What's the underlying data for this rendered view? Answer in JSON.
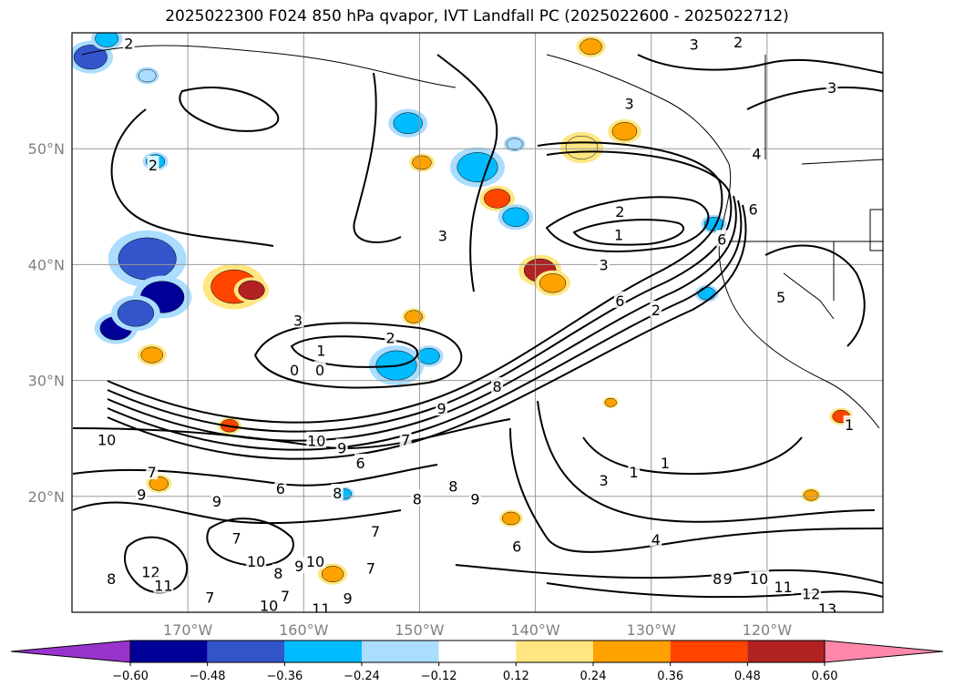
{
  "title": "2025022300 F024 850 hPa qvapor, IVT Landfall PC (2025022600 - 2025022712)",
  "map": {
    "projection": "equirectangular",
    "lon_range": [
      -180,
      -110
    ],
    "lat_range": [
      10,
      60
    ],
    "lat_gridlines": [
      20,
      30,
      40,
      50
    ],
    "lon_gridlines": [
      -170,
      -160,
      -150,
      -140,
      -130,
      -120
    ],
    "lat_labels": [
      "20°N",
      "30°N",
      "40°N",
      "50°N"
    ],
    "lon_labels": [
      "170°W",
      "160°W",
      "150°W",
      "140°W",
      "130°W",
      "120°W"
    ],
    "grid": true
  },
  "colorbar": {
    "levels": [
      -0.72,
      -0.6,
      -0.48,
      -0.36,
      -0.24,
      -0.12,
      0.12,
      0.24,
      0.36,
      0.48,
      0.6,
      0.72
    ],
    "colors": [
      "#9933cc",
      "#000099",
      "#3355cc",
      "#00bbff",
      "#aaddff",
      "#ffffff",
      "#ffe680",
      "#ffa200",
      "#ff4400",
      "#b22222",
      "#ff88aa"
    ],
    "tick_labels": [
      "−0.60",
      "−0.48",
      "−0.36",
      "−0.24",
      "−0.12",
      "0.12",
      "0.24",
      "0.36",
      "0.48",
      "0.60"
    ],
    "extend": "both"
  },
  "contour_labels": [
    {
      "text": "2",
      "lon": -175.1,
      "lat": 59.1
    },
    {
      "text": "2",
      "lon": -173,
      "lat": 48.6
    },
    {
      "text": "3",
      "lon": -160.5,
      "lat": 35.2
    },
    {
      "text": "1",
      "lon": -158.5,
      "lat": 32.6
    },
    {
      "text": "2",
      "lon": -152.5,
      "lat": 33.7
    },
    {
      "text": "0",
      "lon": -160.8,
      "lat": 30.9
    },
    {
      "text": "0",
      "lon": -158.6,
      "lat": 30.9
    },
    {
      "text": "3",
      "lon": -148,
      "lat": 42.5
    },
    {
      "text": "2",
      "lon": -132.7,
      "lat": 44.6
    },
    {
      "text": "1",
      "lon": -132.8,
      "lat": 42.6
    },
    {
      "text": "3",
      "lon": -134.1,
      "lat": 40
    },
    {
      "text": "6",
      "lon": -132.7,
      "lat": 36.9
    },
    {
      "text": "2",
      "lon": -129.6,
      "lat": 36.1
    },
    {
      "text": "3",
      "lon": -131.9,
      "lat": 53.9
    },
    {
      "text": "3",
      "lon": -126.3,
      "lat": 59
    },
    {
      "text": "2",
      "lon": -122.5,
      "lat": 59.2
    },
    {
      "text": "3",
      "lon": -114.4,
      "lat": 55.3
    },
    {
      "text": "4",
      "lon": -120.9,
      "lat": 49.6
    },
    {
      "text": "6",
      "lon": -121.2,
      "lat": 44.8
    },
    {
      "text": "6",
      "lon": -123.9,
      "lat": 42.2
    },
    {
      "text": "5",
      "lon": -118.8,
      "lat": 37.2
    },
    {
      "text": "1",
      "lon": -112.9,
      "lat": 26.2
    },
    {
      "text": "8",
      "lon": -143.3,
      "lat": 29.5
    },
    {
      "text": "9",
      "lon": -148.1,
      "lat": 27.6
    },
    {
      "text": "10",
      "lon": -177,
      "lat": 24.9
    },
    {
      "text": "10",
      "lon": -158.9,
      "lat": 24.8
    },
    {
      "text": "9",
      "lon": -156.7,
      "lat": 24.2
    },
    {
      "text": "7",
      "lon": -151.2,
      "lat": 24.9
    },
    {
      "text": "6",
      "lon": -155.1,
      "lat": 22.9
    },
    {
      "text": "7",
      "lon": -173.1,
      "lat": 22.1
    },
    {
      "text": "9",
      "lon": -174,
      "lat": 20.2
    },
    {
      "text": "9",
      "lon": -167.5,
      "lat": 19.6
    },
    {
      "text": "6",
      "lon": -162,
      "lat": 20.7
    },
    {
      "text": "8",
      "lon": -157.1,
      "lat": 20.3
    },
    {
      "text": "8",
      "lon": -150.2,
      "lat": 19.8
    },
    {
      "text": "8",
      "lon": -147.1,
      "lat": 20.9
    },
    {
      "text": "9",
      "lon": -145.2,
      "lat": 19.8
    },
    {
      "text": "6",
      "lon": -141.6,
      "lat": 15.7
    },
    {
      "text": "3",
      "lon": -134.1,
      "lat": 21.4
    },
    {
      "text": "1",
      "lon": -131.5,
      "lat": 22.1
    },
    {
      "text": "1",
      "lon": -128.8,
      "lat": 22.9
    },
    {
      "text": "4",
      "lon": -129.6,
      "lat": 16.3
    },
    {
      "text": "7",
      "lon": -165.8,
      "lat": 16.4
    },
    {
      "text": "10",
      "lon": -164.1,
      "lat": 14.4
    },
    {
      "text": "8",
      "lon": -162.2,
      "lat": 13.4
    },
    {
      "text": "9",
      "lon": -160.4,
      "lat": 14
    },
    {
      "text": "10",
      "lon": -159,
      "lat": 14.4
    },
    {
      "text": "7",
      "lon": -161.6,
      "lat": 11.4
    },
    {
      "text": "7",
      "lon": -168.1,
      "lat": 11.3
    },
    {
      "text": "10",
      "lon": -163,
      "lat": 10.6
    },
    {
      "text": "11",
      "lon": -158.5,
      "lat": 10.3
    },
    {
      "text": "9",
      "lon": -156.2,
      "lat": 11.2
    },
    {
      "text": "7",
      "lon": -154.2,
      "lat": 13.8
    },
    {
      "text": "7",
      "lon": -153.8,
      "lat": 17
    },
    {
      "text": "12",
      "lon": -173.2,
      "lat": 13.5
    },
    {
      "text": "11",
      "lon": -172.1,
      "lat": 12.3
    },
    {
      "text": "8",
      "lon": -176.6,
      "lat": 12.9
    },
    {
      "text": "8",
      "lon": -124.3,
      "lat": 12.9
    },
    {
      "text": "9",
      "lon": -123.4,
      "lat": 12.9
    },
    {
      "text": "10",
      "lon": -120.7,
      "lat": 12.9
    },
    {
      "text": "11",
      "lon": -118.6,
      "lat": 12.2
    },
    {
      "text": "12",
      "lon": -116.2,
      "lat": 11.6
    },
    {
      "text": "13",
      "lon": -114.8,
      "lat": 10.3
    }
  ],
  "anomaly_patches": [
    {
      "lon": -166,
      "lat": 38.1,
      "value": 0.42,
      "size": 3.2
    },
    {
      "lon": -164.5,
      "lat": 37.8,
      "value": 0.5,
      "size": 1.8
    },
    {
      "lon": -173.5,
      "lat": 40.5,
      "value": -0.45,
      "size": 4.0
    },
    {
      "lon": -172.2,
      "lat": 37.2,
      "value": -0.55,
      "size": 3.0
    },
    {
      "lon": -176.2,
      "lat": 34.5,
      "value": -0.6,
      "size": 2.2
    },
    {
      "lon": -174.5,
      "lat": 35.8,
      "value": -0.38,
      "size": 2.5
    },
    {
      "lon": -173.1,
      "lat": 32.2,
      "value": 0.3,
      "size": 1.5
    },
    {
      "lon": -178.4,
      "lat": 57.9,
      "value": -0.45,
      "size": 2.3
    },
    {
      "lon": -177,
      "lat": 59.5,
      "value": -0.32,
      "size": 1.6
    },
    {
      "lon": -173.5,
      "lat": 56.3,
      "value": -0.22,
      "size": 1.2
    },
    {
      "lon": -172.8,
      "lat": 48.9,
      "value": -0.25,
      "size": 1.3
    },
    {
      "lon": -151,
      "lat": 52.2,
      "value": -0.3,
      "size": 2.0
    },
    {
      "lon": -149.8,
      "lat": 48.8,
      "value": 0.28,
      "size": 1.3
    },
    {
      "lon": -145,
      "lat": 48.4,
      "value": -0.32,
      "size": 2.8
    },
    {
      "lon": -143.3,
      "lat": 45.7,
      "value": 0.36,
      "size": 1.8
    },
    {
      "lon": -141.7,
      "lat": 44.1,
      "value": -0.25,
      "size": 1.8
    },
    {
      "lon": -136,
      "lat": 50.1,
      "value": 0.22,
      "size": 2.2
    },
    {
      "lon": -132.3,
      "lat": 51.5,
      "value": 0.3,
      "size": 1.7
    },
    {
      "lon": -135.2,
      "lat": 58.8,
      "value": 0.3,
      "size": 1.5
    },
    {
      "lon": -141.8,
      "lat": 50.4,
      "value": -0.22,
      "size": 1.1
    },
    {
      "lon": -139.6,
      "lat": 39.5,
      "value": 0.5,
      "size": 2.2
    },
    {
      "lon": -138.5,
      "lat": 38.4,
      "value": 0.35,
      "size": 1.8
    },
    {
      "lon": -152,
      "lat": 31.3,
      "value": -0.35,
      "size": 2.8
    },
    {
      "lon": -149.2,
      "lat": 32.1,
      "value": -0.3,
      "size": 1.5
    },
    {
      "lon": -150.5,
      "lat": 35.5,
      "value": 0.3,
      "size": 1.2
    },
    {
      "lon": -166.4,
      "lat": 26.1,
      "value": 0.45,
      "size": 1.2
    },
    {
      "lon": -172.5,
      "lat": 21.1,
      "value": 0.25,
      "size": 1.3
    },
    {
      "lon": -157.5,
      "lat": 13.3,
      "value": 0.3,
      "size": 1.5
    },
    {
      "lon": -142.1,
      "lat": 18.1,
      "value": 0.28,
      "size": 1.2
    },
    {
      "lon": -124.6,
      "lat": 43.5,
      "value": -0.3,
      "size": 1.3
    },
    {
      "lon": -125.2,
      "lat": 37.5,
      "value": -0.25,
      "size": 1.2
    },
    {
      "lon": -113.6,
      "lat": 26.9,
      "value": 0.38,
      "size": 1.2
    },
    {
      "lon": -116.2,
      "lat": 20.1,
      "value": 0.24,
      "size": 1.0
    },
    {
      "lon": -133.5,
      "lat": 28.1,
      "value": 0.26,
      "size": 0.8
    },
    {
      "lon": -156.5,
      "lat": 20.2,
      "value": -0.3,
      "size": 1.0
    }
  ]
}
